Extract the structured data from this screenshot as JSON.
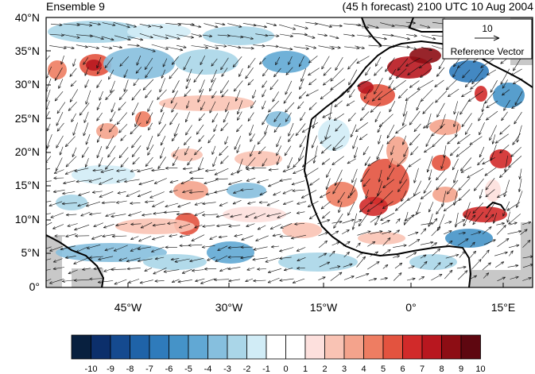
{
  "figure": {
    "title_left": "Ensemble 9",
    "title_right": "(45 h forecast) 2100 UTC 10 Aug 2004"
  },
  "map": {
    "lat_ticks": [
      "40°N",
      "35°N",
      "30°N",
      "25°N",
      "20°N",
      "15°N",
      "10°N",
      "5°N",
      "0°"
    ],
    "lon_ticks": [
      "45°W",
      "30°W",
      "15°W",
      "0°",
      "15°E"
    ],
    "reference_vector": {
      "value": "10",
      "label": "Reference Vector"
    }
  },
  "colorbar": {
    "labels": [
      "-10",
      "-9",
      "-8",
      "-7",
      "-6",
      "-5",
      "-4",
      "-3",
      "-2",
      "-1",
      "0",
      "1",
      "2",
      "3",
      "4",
      "5",
      "6",
      "7",
      "8",
      "9",
      "10"
    ],
    "colors": [
      "#08203f",
      "#0c2f6b",
      "#154a8f",
      "#1f63a8",
      "#2f7bbb",
      "#4593c8",
      "#61a8d4",
      "#86bfde",
      "#aad6e8",
      "#d1ecf6",
      "#ffffff",
      "#ffffff",
      "#fde0dd",
      "#f9c3b4",
      "#f4a38c",
      "#ee7d62",
      "#e3533f",
      "#d12a2a",
      "#b8171f",
      "#8d0d14",
      "#5e0710"
    ]
  },
  "colors": {
    "land_mask": "#c8c8c8",
    "coast": "#000000",
    "arrow": "#111111"
  }
}
